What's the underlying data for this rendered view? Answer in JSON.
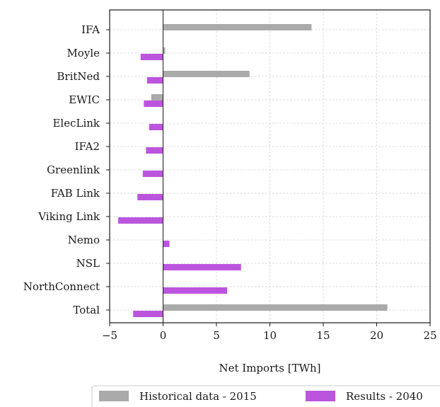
{
  "chart_data": {
    "type": "bar",
    "orientation": "horizontal",
    "categories": [
      "IFA",
      "Moyle",
      "BritNed",
      "EWIC",
      "ElecLink",
      "IFA2",
      "Greenlink",
      "FAB Link",
      "Viking Link",
      "Nemo",
      "NSL",
      "NorthConnect",
      "Total"
    ],
    "series": [
      {
        "name": "Historical data - 2015",
        "color": "#aaaaaa",
        "values": [
          13.9,
          0.2,
          8.1,
          -1.1,
          0,
          0,
          0,
          0,
          0,
          0,
          0,
          0,
          21.0
        ]
      },
      {
        "name": "Results - 2040",
        "color": "#bb55dd",
        "values": [
          0,
          -2.1,
          -1.5,
          -1.8,
          -1.3,
          -1.6,
          -1.9,
          -2.4,
          -4.2,
          0.6,
          7.3,
          6.0,
          -2.8
        ]
      }
    ],
    "xlabel": "Net Imports [TWh]",
    "ylabel": "",
    "xlim": [
      -5,
      25
    ],
    "xticks": [
      -5,
      0,
      5,
      10,
      15,
      20,
      25
    ],
    "xtick_labels": [
      "−5",
      "0",
      "5",
      "10",
      "15",
      "20",
      "25"
    ],
    "grid": true,
    "legend_position": "bottom"
  }
}
